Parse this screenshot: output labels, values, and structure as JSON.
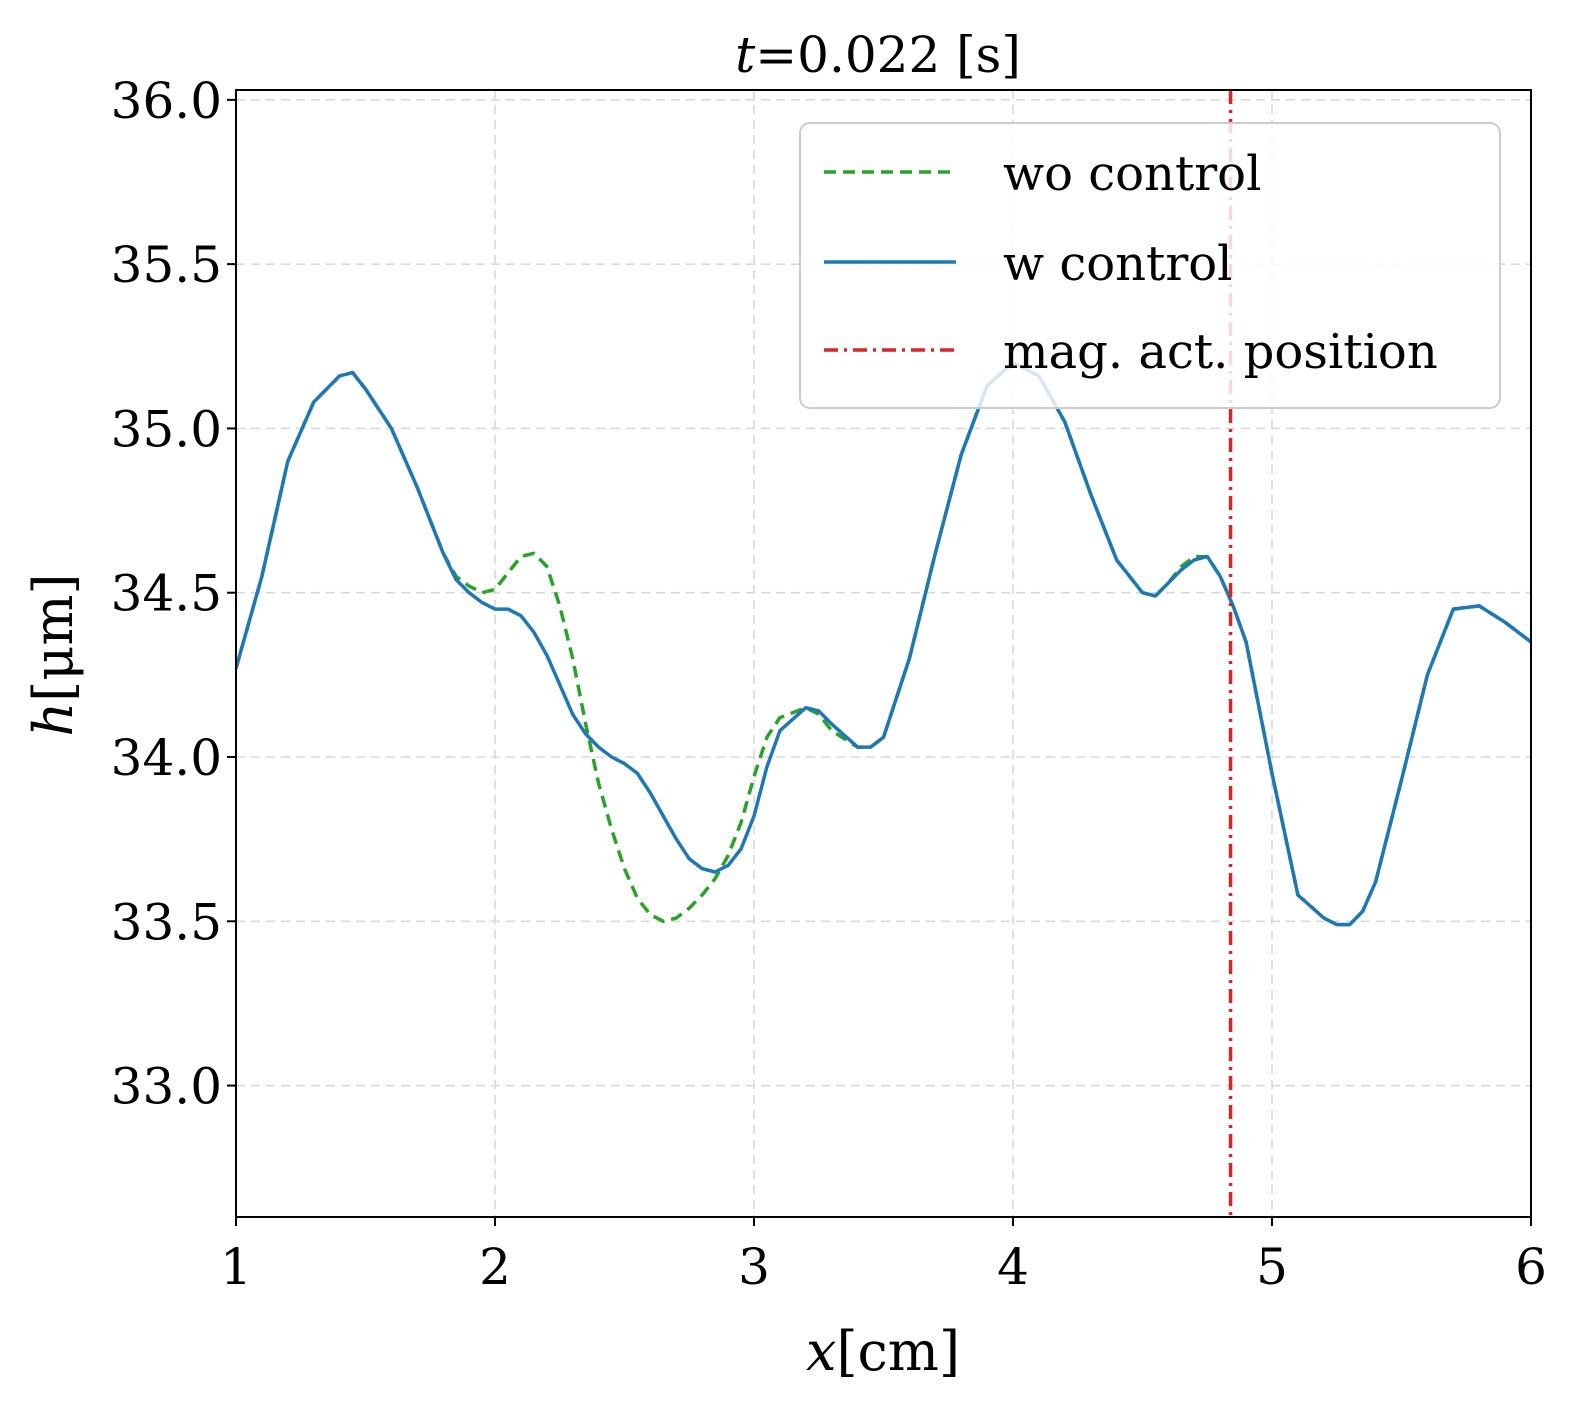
{
  "chart_data": {
    "type": "line",
    "title": "t=0.022 [s]",
    "title_parts": {
      "var": "t",
      "rest": "=0.022 [s]"
    },
    "xlabel": "x[cm]",
    "xlabel_parts": {
      "var": "x",
      "rest": "[cm]"
    },
    "ylabel": "h[μm]",
    "ylabel_parts": {
      "var": "h",
      "rest": "[μm]"
    },
    "xlim": [
      1,
      6
    ],
    "ylim": [
      32.6,
      36.03
    ],
    "xticks": [
      1,
      2,
      3,
      4,
      5,
      6
    ],
    "xtick_labels": [
      "1",
      "2",
      "3",
      "4",
      "5",
      "6"
    ],
    "yticks": [
      33.0,
      33.5,
      34.0,
      34.5,
      35.0,
      35.5,
      36.0
    ],
    "ytick_labels": [
      "33.0",
      "33.5",
      "34.0",
      "34.5",
      "35.0",
      "35.5",
      "36.0"
    ],
    "grid": true,
    "legend_position": "top-right",
    "series": [
      {
        "name": "wo control",
        "color": "#2ca02c",
        "style": "dashed",
        "x": [
          1.0,
          1.1,
          1.2,
          1.3,
          1.4,
          1.45,
          1.5,
          1.6,
          1.7,
          1.8,
          1.85,
          1.9,
          1.95,
          2.0,
          2.05,
          2.1,
          2.15,
          2.2,
          2.25,
          2.3,
          2.35,
          2.4,
          2.45,
          2.5,
          2.55,
          2.6,
          2.65,
          2.7,
          2.75,
          2.8,
          2.85,
          2.9,
          2.95,
          3.0,
          3.05,
          3.1,
          3.2,
          3.25,
          3.3,
          3.4,
          3.45,
          3.5,
          3.6,
          3.7,
          3.8,
          3.9,
          4.0,
          4.1,
          4.2,
          4.3,
          4.4,
          4.5,
          4.55,
          4.6,
          4.65,
          4.7,
          4.75,
          4.8,
          4.85,
          4.9,
          5.0,
          5.1,
          5.2,
          5.25,
          5.3,
          5.35,
          5.4,
          5.5,
          5.6,
          5.7,
          5.8,
          5.9,
          6.0
        ],
        "y": [
          34.27,
          34.55,
          34.9,
          35.08,
          35.16,
          35.17,
          35.12,
          35.0,
          34.82,
          34.62,
          34.55,
          34.52,
          34.5,
          34.51,
          34.56,
          34.61,
          34.62,
          34.58,
          34.46,
          34.3,
          34.1,
          33.92,
          33.78,
          33.66,
          33.57,
          33.52,
          33.5,
          33.51,
          33.54,
          33.58,
          33.63,
          33.7,
          33.8,
          33.94,
          34.06,
          34.12,
          34.15,
          34.13,
          34.08,
          34.03,
          34.03,
          34.06,
          34.3,
          34.62,
          34.92,
          35.13,
          35.2,
          35.16,
          35.02,
          34.8,
          34.6,
          34.5,
          34.49,
          34.53,
          34.58,
          34.61,
          34.61,
          34.55,
          34.46,
          34.35,
          33.95,
          33.58,
          33.51,
          33.49,
          33.49,
          33.53,
          33.62,
          33.93,
          34.25,
          34.45,
          34.46,
          34.41,
          34.35
        ]
      },
      {
        "name": "w control",
        "color": "#1f77b4",
        "style": "solid",
        "x": [
          1.0,
          1.1,
          1.2,
          1.3,
          1.4,
          1.45,
          1.5,
          1.6,
          1.7,
          1.8,
          1.85,
          1.9,
          1.95,
          2.0,
          2.05,
          2.1,
          2.15,
          2.2,
          2.25,
          2.3,
          2.35,
          2.4,
          2.45,
          2.5,
          2.55,
          2.6,
          2.65,
          2.7,
          2.75,
          2.8,
          2.85,
          2.9,
          2.95,
          3.0,
          3.05,
          3.1,
          3.2,
          3.25,
          3.3,
          3.4,
          3.45,
          3.5,
          3.6,
          3.7,
          3.8,
          3.9,
          4.0,
          4.1,
          4.2,
          4.3,
          4.4,
          4.5,
          4.55,
          4.6,
          4.65,
          4.7,
          4.75,
          4.8,
          4.85,
          4.9,
          5.0,
          5.1,
          5.2,
          5.25,
          5.3,
          5.35,
          5.4,
          5.5,
          5.6,
          5.7,
          5.8,
          5.9,
          6.0
        ],
        "y": [
          34.27,
          34.55,
          34.9,
          35.08,
          35.16,
          35.17,
          35.12,
          35.0,
          34.82,
          34.62,
          34.54,
          34.5,
          34.47,
          34.45,
          34.45,
          34.43,
          34.38,
          34.31,
          34.22,
          34.13,
          34.07,
          34.03,
          34.0,
          33.98,
          33.95,
          33.89,
          33.82,
          33.75,
          33.69,
          33.66,
          33.65,
          33.67,
          33.72,
          33.82,
          33.97,
          34.08,
          34.15,
          34.14,
          34.1,
          34.03,
          34.03,
          34.06,
          34.3,
          34.62,
          34.92,
          35.13,
          35.2,
          35.16,
          35.02,
          34.8,
          34.6,
          34.5,
          34.49,
          34.53,
          34.57,
          34.6,
          34.61,
          34.55,
          34.46,
          34.35,
          33.95,
          33.58,
          33.51,
          33.49,
          33.49,
          33.53,
          33.62,
          33.93,
          34.25,
          34.45,
          34.46,
          34.41,
          34.35
        ]
      },
      {
        "name": "mag. act. position",
        "color": "#d62728",
        "style": "dashdot",
        "type": "vline",
        "x": 4.84
      }
    ]
  }
}
